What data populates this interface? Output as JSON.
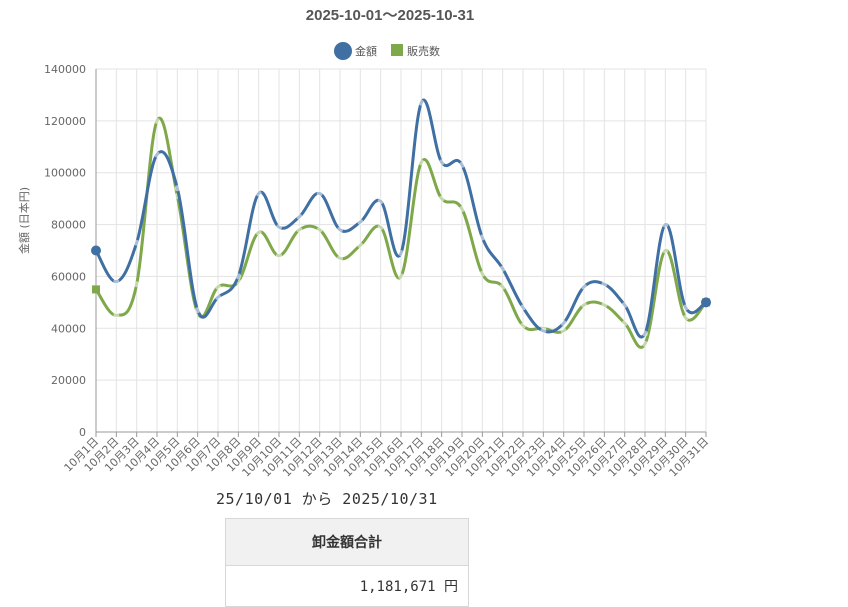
{
  "chart_data": {
    "type": "line",
    "title": "2025-10-01～2025-10-31",
    "ylabel": "金額 (日本円)",
    "xlabel": "",
    "ylim": [
      0,
      140000
    ],
    "yticks": [
      "0",
      "20000",
      "40000",
      "60000",
      "80000",
      "100000",
      "120000",
      "140000"
    ],
    "legend_position": "top",
    "grid": true,
    "categories": [
      "10月1日",
      "10月2日",
      "10月3日",
      "10月4日",
      "10月5日",
      "10月6日",
      "10月7日",
      "10月8日",
      "10月9日",
      "10月10日",
      "10月11日",
      "10月12日",
      "10月13日",
      "10月14日",
      "10月15日",
      "10月16日",
      "10月17日",
      "10月18日",
      "10月19日",
      "10月20日",
      "10月21日",
      "10月22日",
      "10月23日",
      "10月24日",
      "10月25日",
      "10月26日",
      "10月27日",
      "10月28日",
      "10月29日",
      "10月30日",
      "10月31日"
    ],
    "series": [
      {
        "name": "金額",
        "color": "#3f6fa3",
        "values": [
          70000,
          58000,
          73000,
          107000,
          94000,
          47000,
          52000,
          60000,
          92000,
          79000,
          83000,
          92000,
          78000,
          81000,
          89000,
          69000,
          127000,
          104000,
          103000,
          75000,
          63000,
          48000,
          39000,
          42000,
          56000,
          57000,
          49000,
          38000,
          80000,
          48000,
          50000
        ]
      },
      {
        "name": "販売数",
        "color": "#7ea84a",
        "values": [
          55000,
          45000,
          57000,
          120000,
          91000,
          46000,
          56000,
          58000,
          77000,
          68000,
          78000,
          78000,
          67000,
          72000,
          79000,
          60000,
          104000,
          90000,
          86000,
          61000,
          56000,
          41000,
          40000,
          39000,
          49000,
          49000,
          42000,
          34000,
          70000,
          44000,
          50000
        ]
      }
    ]
  },
  "summary": {
    "range_text": "25/10/01 から 2025/10/31",
    "header": "卸金額合計",
    "total": "1,181,671 円"
  }
}
